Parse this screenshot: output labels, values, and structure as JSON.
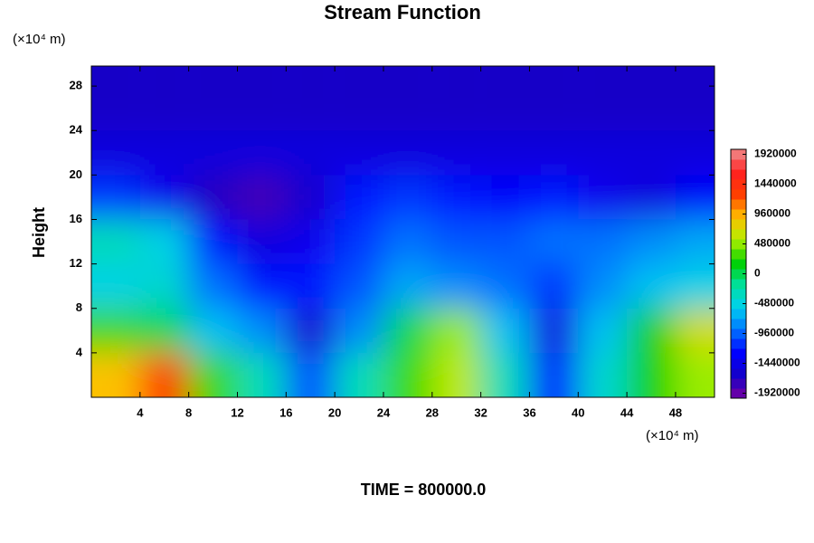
{
  "chart_data": {
    "type": "contour",
    "title": "Stream Function",
    "y_label": "Height",
    "x_unit": "(×10⁴ m)",
    "y_unit": "(×10⁴ m)",
    "footer": "TIME = 800000.0",
    "xlim": [
      0,
      51.2
    ],
    "ylim": [
      0,
      29.8
    ],
    "xticks": [
      4,
      8,
      12,
      16,
      20,
      24,
      28,
      32,
      36,
      40,
      44,
      48
    ],
    "yticks": [
      4,
      8,
      12,
      16,
      20,
      24,
      28
    ],
    "x": [
      2,
      6,
      10,
      14,
      18,
      22,
      26,
      30,
      34,
      38,
      42,
      46,
      50
    ],
    "y": [
      2,
      6,
      10,
      14,
      18,
      22,
      26
    ],
    "z": [
      [
        900000,
        1300000,
        300000,
        -300000,
        -1000000,
        -300000,
        300000,
        600000,
        -300000,
        -1200000,
        -400000,
        200000,
        500000
      ],
      [
        300000,
        0,
        -600000,
        -800000,
        -1600000,
        -800000,
        0,
        500000,
        -600000,
        -1500000,
        -600000,
        200000,
        700000
      ],
      [
        -500000,
        -400000,
        -900000,
        -1200000,
        -1200000,
        -1000000,
        -700000,
        -800000,
        -900000,
        -1100000,
        -800000,
        -600000,
        -500000
      ],
      [
        -300000,
        -500000,
        -1200000,
        -1500000,
        -1400000,
        -1100000,
        -900000,
        -1000000,
        -1000000,
        -900000,
        -900000,
        -800000,
        -700000
      ],
      [
        -1100000,
        -1400000,
        -1700000,
        -1800000,
        -1600000,
        -1200000,
        -1100000,
        -1200000,
        -1300000,
        -1200000,
        -1400000,
        -1500000,
        -1300000
      ],
      [
        -1500000,
        -1500000,
        -1500000,
        -1500000,
        -1500000,
        -1500000,
        -1500000,
        -1500000,
        -1500000,
        -1500000,
        -1500000,
        -1500000,
        -1500000
      ],
      [
        -1650000,
        -1650000,
        -1650000,
        -1650000,
        -1650000,
        -1650000,
        -1650000,
        -1650000,
        -1650000,
        -1650000,
        -1650000,
        -1650000,
        -1650000
      ]
    ],
    "clim": [
      -2000000,
      2000000
    ],
    "colorbar_ticks": [
      1920000,
      1440000,
      960000,
      480000,
      0,
      -480000,
      -960000,
      -1440000,
      -1920000
    ],
    "colormap": [
      "#7a00a0",
      "#1400c8",
      "#0000ff",
      "#0070ff",
      "#00d0f0",
      "#00e0a0",
      "#00d000",
      "#b0f000",
      "#ffc000",
      "#ff4000",
      "#ff2020",
      "#f09090"
    ]
  }
}
